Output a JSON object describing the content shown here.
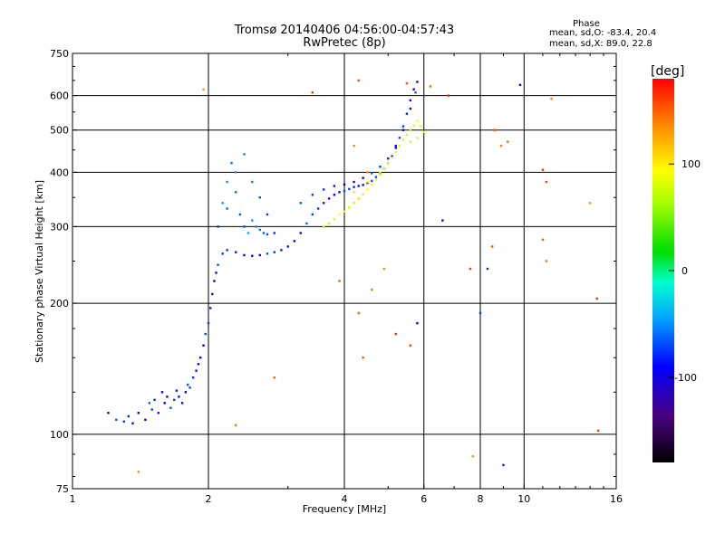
{
  "chart_data": {
    "type": "scatter",
    "title": "Tromsø 20140406 04:56:00-04:57:43",
    "subtitle": "RwPretec (8p)",
    "xlabel": "Frequency [MHz]",
    "ylabel": "Stationary phase Virtual Height [km]",
    "x_scale": "log",
    "y_scale": "log",
    "xlim": [
      1,
      16
    ],
    "ylim": [
      75,
      750
    ],
    "x_ticks": [
      1,
      2,
      4,
      6,
      8,
      10,
      16
    ],
    "y_ticks": [
      75,
      100,
      200,
      300,
      400,
      500,
      600,
      750
    ],
    "grid": true,
    "colorbar": {
      "label": "[deg]",
      "range": [
        -180,
        180
      ],
      "ticks": [
        100,
        0,
        -100
      ]
    },
    "phase_stats": {
      "heading": "Phase",
      "line_o": "mean, sd,O: -83.4, 20.4",
      "line_x": "mean, sd,X:  89.0, 22.8"
    },
    "series": [
      {
        "mode": "O",
        "phase_mean": -83.4,
        "points": [
          [
            1.2,
            112
          ],
          [
            1.25,
            108
          ],
          [
            1.3,
            107
          ],
          [
            1.33,
            110
          ],
          [
            1.36,
            106
          ],
          [
            1.4,
            112
          ],
          [
            1.45,
            108
          ],
          [
            1.48,
            118
          ],
          [
            1.5,
            114
          ],
          [
            1.52,
            120
          ],
          [
            1.55,
            112
          ],
          [
            1.58,
            125
          ],
          [
            1.6,
            118
          ],
          [
            1.62,
            122
          ],
          [
            1.65,
            115
          ],
          [
            1.68,
            120
          ],
          [
            1.7,
            126
          ],
          [
            1.72,
            122
          ],
          [
            1.75,
            118
          ],
          [
            1.78,
            125
          ],
          [
            1.8,
            130
          ],
          [
            1.82,
            128
          ],
          [
            1.85,
            135
          ],
          [
            1.88,
            140
          ],
          [
            1.9,
            145
          ],
          [
            1.92,
            150
          ],
          [
            1.95,
            160
          ],
          [
            1.97,
            170
          ],
          [
            2.0,
            180
          ],
          [
            2.02,
            195
          ],
          [
            2.04,
            210
          ],
          [
            2.06,
            225
          ],
          [
            2.08,
            235
          ],
          [
            2.1,
            245
          ],
          [
            2.15,
            260
          ],
          [
            2.2,
            265
          ],
          [
            2.3,
            262
          ],
          [
            2.4,
            258
          ],
          [
            2.5,
            257
          ],
          [
            2.6,
            258
          ],
          [
            2.7,
            260
          ],
          [
            2.8,
            262
          ],
          [
            2.9,
            265
          ],
          [
            3.0,
            270
          ],
          [
            3.1,
            278
          ],
          [
            3.2,
            290
          ],
          [
            3.3,
            305
          ],
          [
            3.4,
            320
          ],
          [
            3.5,
            330
          ],
          [
            3.6,
            340
          ],
          [
            3.7,
            348
          ],
          [
            3.8,
            355
          ],
          [
            3.9,
            360
          ],
          [
            4.0,
            362
          ],
          [
            4.1,
            366
          ],
          [
            4.2,
            370
          ],
          [
            4.3,
            372
          ],
          [
            4.4,
            374
          ],
          [
            4.5,
            378
          ],
          [
            4.6,
            382
          ],
          [
            4.7,
            390
          ],
          [
            4.8,
            398
          ],
          [
            4.9,
            408
          ],
          [
            5.0,
            420
          ],
          [
            5.1,
            435
          ],
          [
            5.2,
            455
          ],
          [
            5.3,
            480
          ],
          [
            5.4,
            510
          ],
          [
            5.5,
            545
          ],
          [
            5.6,
            585
          ],
          [
            5.7,
            620
          ],
          [
            5.8,
            645
          ],
          [
            3.2,
            340
          ],
          [
            3.4,
            355
          ],
          [
            3.6,
            365
          ],
          [
            3.8,
            372
          ],
          [
            4.0,
            375
          ],
          [
            4.2,
            380
          ],
          [
            4.4,
            388
          ],
          [
            4.6,
            398
          ],
          [
            4.8,
            412
          ],
          [
            5.0,
            430
          ],
          [
            5.2,
            460
          ],
          [
            5.4,
            500
          ],
          [
            5.6,
            560
          ],
          [
            5.75,
            610
          ],
          [
            8.0,
            190
          ],
          [
            8.3,
            240
          ],
          [
            9.0,
            85
          ],
          [
            9.8,
            635
          ],
          [
            5.8,
            180
          ],
          [
            6.6,
            310
          ]
        ]
      },
      {
        "mode": "X",
        "phase_mean": 89.0,
        "points": [
          [
            3.6,
            300
          ],
          [
            3.7,
            305
          ],
          [
            3.8,
            312
          ],
          [
            3.9,
            320
          ],
          [
            4.0,
            325
          ],
          [
            4.1,
            332
          ],
          [
            4.2,
            340
          ],
          [
            4.3,
            348
          ],
          [
            4.4,
            356
          ],
          [
            4.5,
            365
          ],
          [
            4.6,
            375
          ],
          [
            4.7,
            385
          ],
          [
            4.8,
            395
          ],
          [
            4.9,
            408
          ],
          [
            5.0,
            420
          ],
          [
            5.1,
            432
          ],
          [
            5.2,
            445
          ],
          [
            5.3,
            460
          ],
          [
            5.4,
            475
          ],
          [
            5.5,
            488
          ],
          [
            5.6,
            500
          ],
          [
            5.7,
            512
          ],
          [
            5.8,
            525
          ],
          [
            5.9,
            510
          ],
          [
            6.0,
            495
          ],
          [
            5.8,
            480
          ],
          [
            5.6,
            470
          ],
          [
            4.2,
            360
          ],
          [
            4.5,
            380
          ],
          [
            4.8,
            400
          ]
        ]
      },
      {
        "mode": "F1-trace",
        "phase_mean": -60,
        "points": [
          [
            2.1,
            300
          ],
          [
            2.15,
            340
          ],
          [
            2.2,
            380
          ],
          [
            2.25,
            420
          ],
          [
            2.3,
            360
          ],
          [
            2.35,
            320
          ],
          [
            2.4,
            300
          ],
          [
            2.45,
            290
          ],
          [
            2.5,
            310
          ],
          [
            2.55,
            300
          ],
          [
            2.6,
            295
          ],
          [
            2.65,
            290
          ],
          [
            2.7,
            288
          ],
          [
            2.8,
            290
          ],
          [
            2.3,
            400
          ],
          [
            2.4,
            440
          ],
          [
            2.5,
            380
          ],
          [
            2.2,
            330
          ],
          [
            2.6,
            350
          ],
          [
            2.7,
            320
          ]
        ]
      },
      {
        "mode": "noise",
        "phase_mean": 150,
        "points": [
          [
            1.95,
            620
          ],
          [
            3.4,
            610
          ],
          [
            4.3,
            650
          ],
          [
            5.5,
            640
          ],
          [
            6.2,
            630
          ],
          [
            4.2,
            460
          ],
          [
            4.5,
            400
          ],
          [
            6.8,
            600
          ],
          [
            7.6,
            240
          ],
          [
            8.5,
            270
          ],
          [
            11.0,
            280
          ],
          [
            11.2,
            250
          ],
          [
            11.5,
            590
          ],
          [
            14.0,
            340
          ],
          [
            14.5,
            205
          ],
          [
            14.6,
            102
          ],
          [
            3.9,
            225
          ],
          [
            4.3,
            190
          ],
          [
            4.6,
            215
          ],
          [
            4.9,
            240
          ],
          [
            5.2,
            170
          ],
          [
            5.6,
            160
          ],
          [
            4.4,
            150
          ],
          [
            2.8,
            135
          ],
          [
            2.3,
            105
          ],
          [
            1.4,
            82
          ],
          [
            7.7,
            89
          ],
          [
            11.0,
            405
          ],
          [
            11.2,
            380
          ],
          [
            8.6,
            500
          ],
          [
            9.2,
            470
          ],
          [
            8.9,
            460
          ]
        ]
      }
    ]
  }
}
